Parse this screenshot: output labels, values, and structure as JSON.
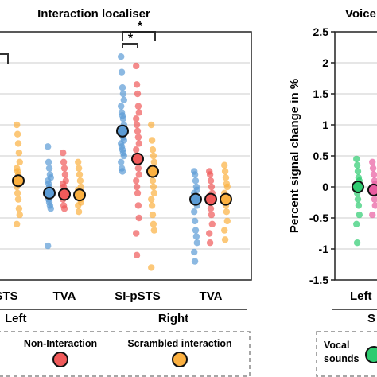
{
  "chart_data": [
    {
      "type": "scatter",
      "title": "Interaction localiser",
      "categories": [
        "STS",
        "TVA",
        "SI-pSTS",
        "TVA"
      ],
      "category_labels_visible": [
        "STS",
        "TVA",
        "SI-pSTS",
        "TVA"
      ],
      "hemisphere_labels": [
        "Left",
        "Right"
      ],
      "ylim": [
        -1.5,
        2.5
      ],
      "grid": true,
      "series": [
        {
          "name": "",
          "color": "#5b9bd5",
          "points": [
            [],
            [
              0.65,
              0.4,
              0.3,
              0.2,
              0.15,
              0.1,
              0.05,
              0.0,
              -0.05,
              -0.1,
              -0.15,
              -0.2,
              -0.25,
              -0.3,
              -0.35,
              -0.95
            ],
            [
              2.1,
              1.85,
              1.6,
              1.5,
              1.4,
              1.3,
              1.2,
              1.15,
              1.1,
              1.0,
              0.95,
              0.9,
              0.85,
              0.8,
              0.75,
              0.7,
              0.65,
              0.6,
              0.55,
              0.5,
              0.4,
              0.3,
              0.25
            ],
            [
              0.25,
              0.2,
              0.1,
              0.0,
              -0.05,
              -0.1,
              -0.15,
              -0.2,
              -0.25,
              -0.3,
              -0.4,
              -0.55,
              -0.7,
              -0.8,
              -0.9,
              -1.05,
              -1.2
            ]
          ],
          "means": [
            null,
            -0.1,
            0.9,
            -0.2
          ]
        },
        {
          "name": "Non-Interaction",
          "color": "#f05a5a",
          "points": [
            [],
            [
              0.55,
              0.4,
              0.3,
              0.2,
              0.1,
              0.05,
              0.0,
              -0.05,
              -0.1,
              -0.15,
              -0.2,
              -0.3,
              -0.35
            ],
            [
              1.95,
              1.65,
              1.5,
              1.3,
              1.2,
              1.1,
              1.0,
              0.9,
              0.8,
              0.7,
              0.6,
              0.5,
              0.4,
              0.3,
              0.2,
              0.1,
              0.0,
              -0.1,
              -0.3,
              -0.5,
              -0.75,
              -1.1
            ],
            [
              0.25,
              0.2,
              0.1,
              0.0,
              -0.1,
              -0.15,
              -0.25,
              -0.35,
              -0.45,
              -0.6,
              -0.75,
              -0.9
            ]
          ],
          "means": [
            null,
            -0.12,
            0.45,
            -0.2
          ]
        },
        {
          "name": "Scrambled interaction",
          "color": "#fbb040",
          "points": [
            [
              1.0,
              0.85,
              0.7,
              0.55,
              0.4,
              0.3,
              0.25,
              0.2,
              0.15,
              0.1,
              0.0,
              -0.1,
              -0.2,
              -0.35,
              -0.45,
              -0.6
            ],
            [
              0.4,
              0.3,
              0.2,
              0.1,
              0.0,
              -0.05,
              -0.1,
              -0.15,
              -0.2,
              -0.25,
              -0.3,
              -0.4
            ],
            [
              1.0,
              0.75,
              0.6,
              0.5,
              0.4,
              0.3,
              0.2,
              0.1,
              0.0,
              -0.1,
              -0.2,
              -0.3,
              -0.45,
              -0.6,
              -0.7,
              -1.3
            ],
            [
              0.35,
              0.25,
              0.15,
              0.05,
              0.0,
              -0.1,
              -0.2,
              -0.3,
              -0.4,
              -0.55,
              -0.7,
              -0.85
            ]
          ],
          "means": [
            0.1,
            -0.13,
            0.25,
            -0.2
          ]
        }
      ],
      "significance": [
        "*",
        "*"
      ],
      "legend_placement": "bottom"
    },
    {
      "type": "scatter",
      "title": "Voice",
      "ylabel": "Percent signal change in %",
      "yticks": [
        "2.5",
        "2",
        "1.5",
        "1",
        "0.5",
        "0",
        "-0.5",
        "-1",
        "-1.5"
      ],
      "ylim": [
        -1.5,
        2.5
      ],
      "category_labels_visible": [
        "Left"
      ],
      "hemisphere_labels": [
        "S"
      ],
      "series": [
        {
          "name": "Vocal sounds",
          "color": "#2ecc71",
          "points": [
            0.45,
            0.35,
            0.25,
            0.15,
            0.1,
            0.0,
            -0.1,
            -0.2,
            -0.3,
            -0.45,
            -0.6,
            -0.9
          ],
          "mean": 0.0
        },
        {
          "name": "",
          "color": "#e85ca0",
          "points": [
            0.4,
            0.3,
            0.2,
            0.1,
            0.05,
            0.0,
            -0.05,
            -0.1,
            -0.2,
            -0.3,
            -0.45
          ],
          "mean": -0.05
        }
      ],
      "legend_labels": [
        "Vocal",
        "sounds"
      ]
    }
  ]
}
